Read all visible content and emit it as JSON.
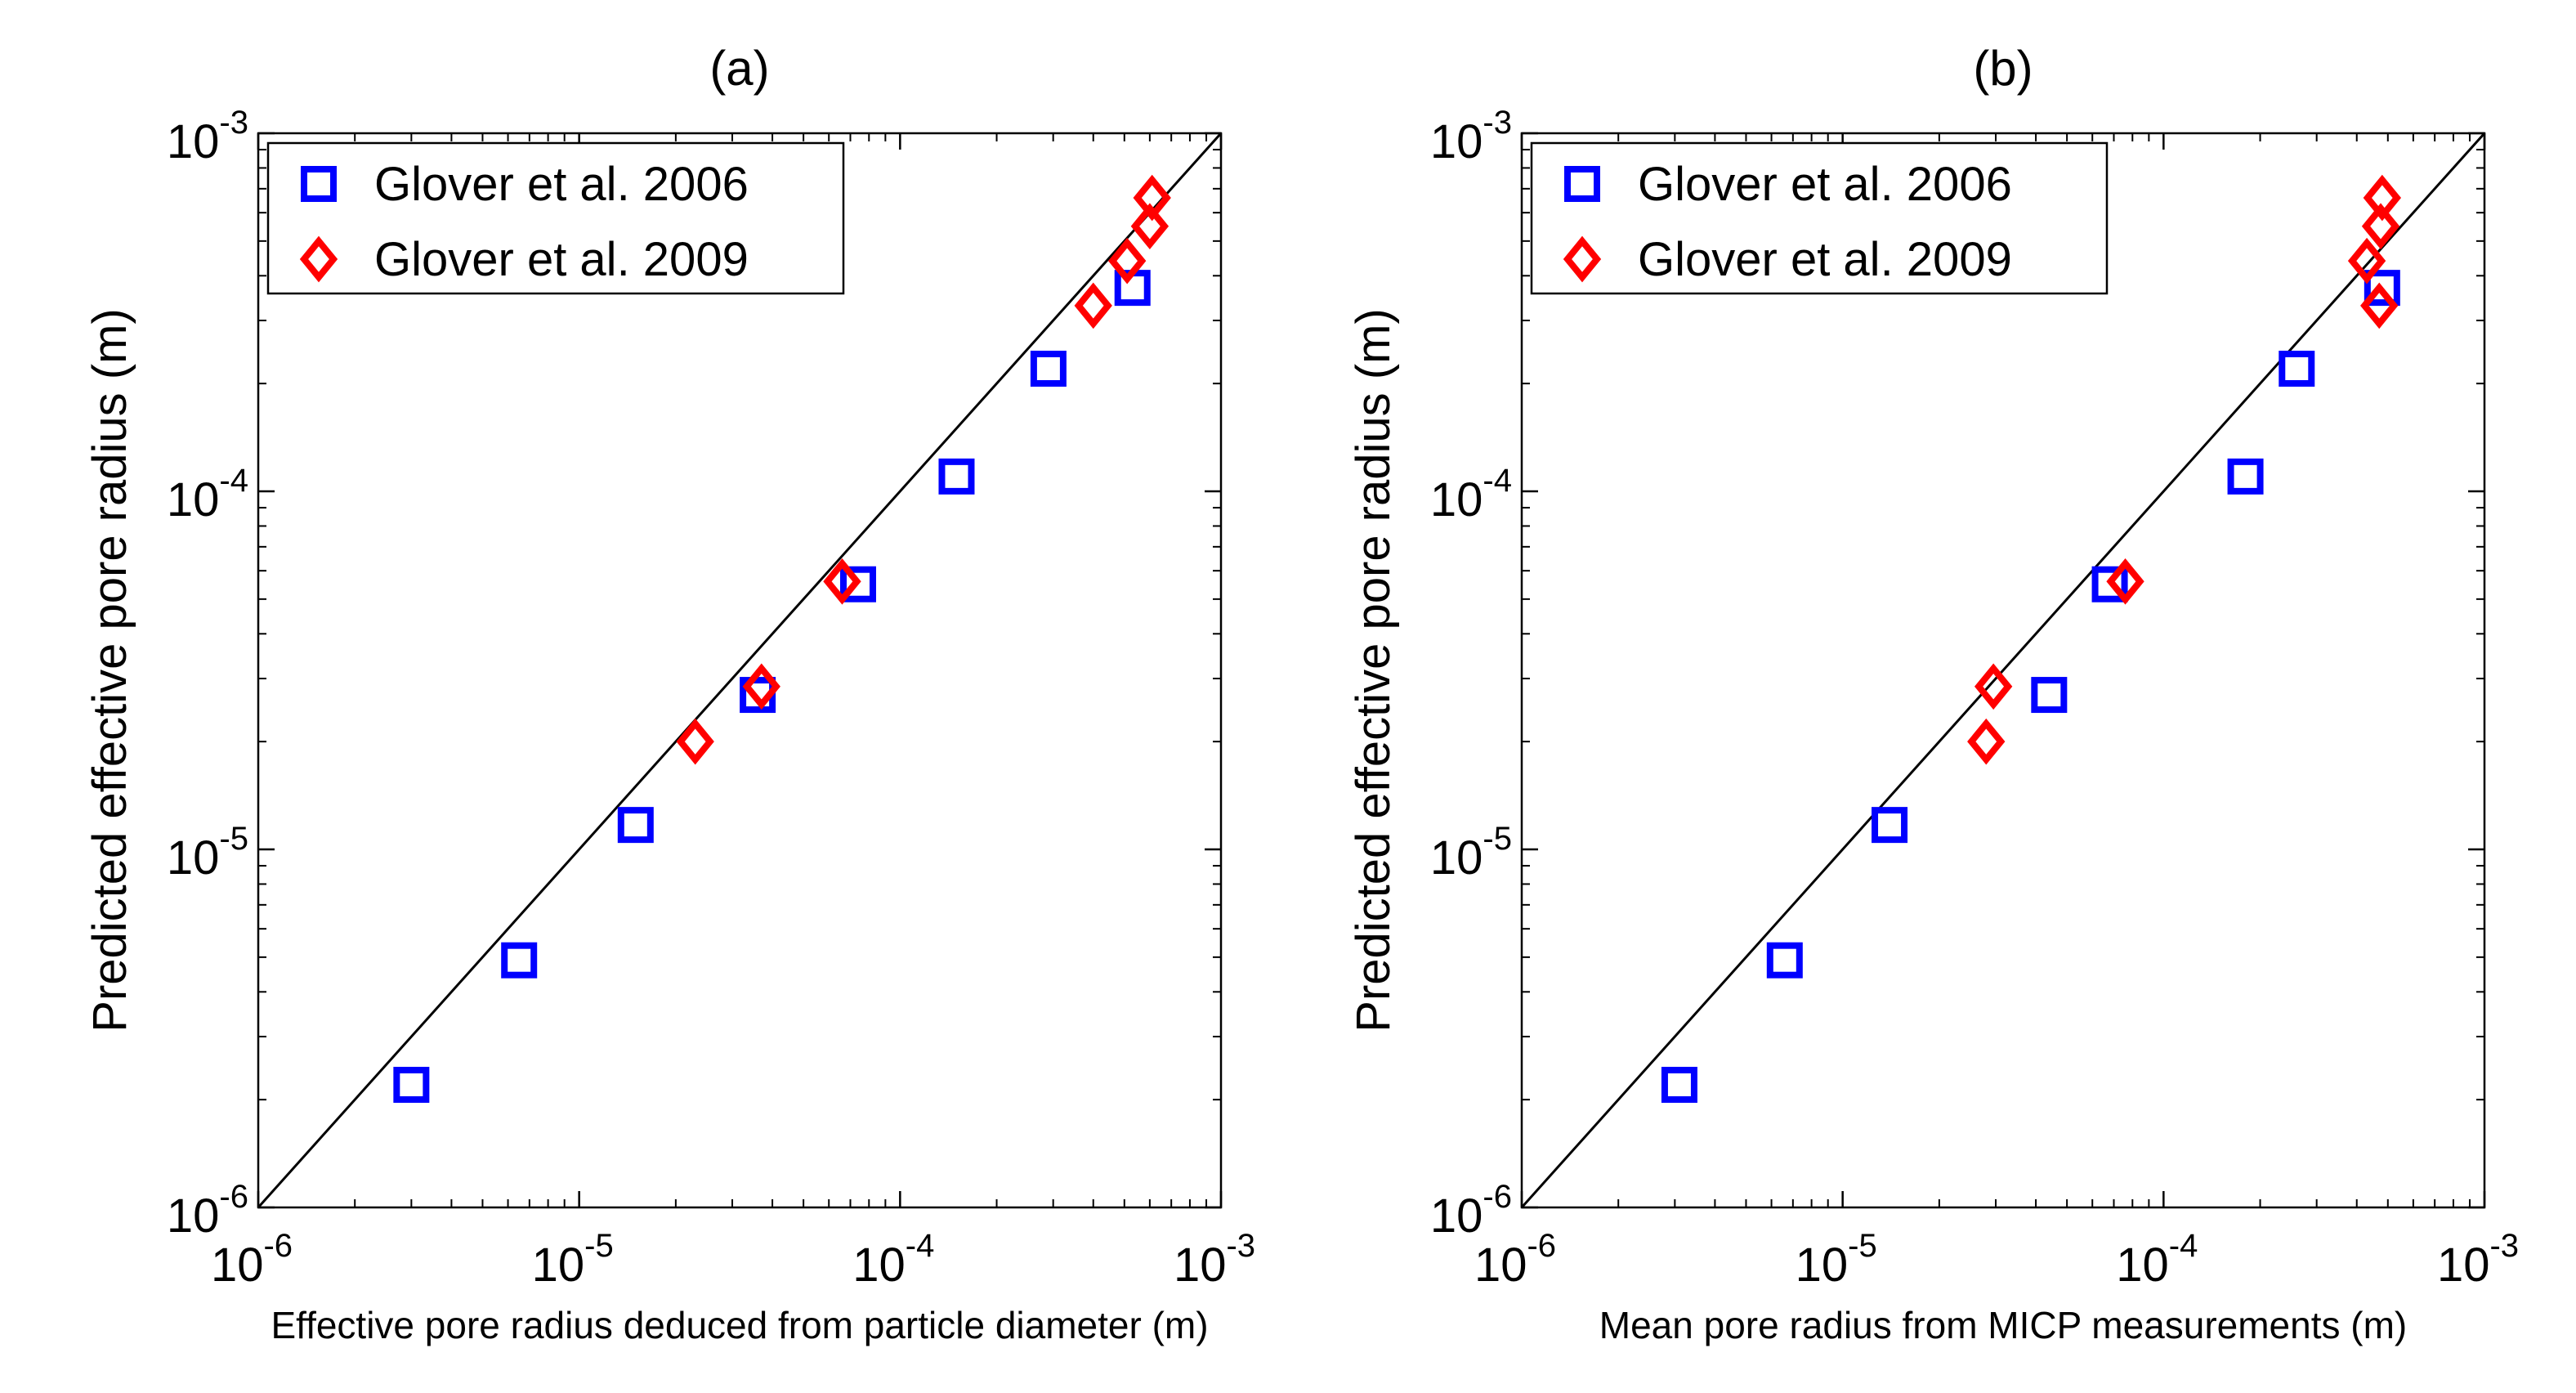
{
  "chart_data": [
    {
      "type": "scatter",
      "title": "(a)",
      "xlabel": "Effective pore radius deduced from particle diameter (m)",
      "ylabel": "Predicted effective pore radius (m)",
      "xscale": "log",
      "yscale": "log",
      "xlim": [
        1e-06,
        0.001
      ],
      "ylim": [
        1e-06,
        0.001
      ],
      "xticks": [
        {
          "base": "10",
          "exp": "-6",
          "value": 1e-06
        },
        {
          "base": "10",
          "exp": "-5",
          "value": 1e-05
        },
        {
          "base": "10",
          "exp": "-4",
          "value": 0.0001
        },
        {
          "base": "10",
          "exp": "-3",
          "value": 0.001
        }
      ],
      "yticks": [
        {
          "base": "10",
          "exp": "-6",
          "value": 1e-06
        },
        {
          "base": "10",
          "exp": "-5",
          "value": 1e-05
        },
        {
          "base": "10",
          "exp": "-4",
          "value": 0.0001
        },
        {
          "base": "10",
          "exp": "-3",
          "value": 0.001
        }
      ],
      "grid": false,
      "legend_position": "top-left",
      "reference_line": "y = x",
      "series": [
        {
          "name": "Glover et al. 2006",
          "marker": "square",
          "color": "#0000ff",
          "points": [
            [
              3e-06,
              2.2e-06
            ],
            [
              6.5e-06,
              4.9e-06
            ],
            [
              1.5e-05,
              1.17e-05
            ],
            [
              3.6e-05,
              2.7e-05
            ],
            [
              7.4e-05,
              5.5e-05
            ],
            [
              0.00015,
              0.00011
            ],
            [
              0.00029,
              0.00022
            ],
            [
              0.00053,
              0.00037
            ]
          ]
        },
        {
          "name": "Glover et al. 2009",
          "marker": "diamond",
          "color": "#ff0000",
          "points": [
            [
              2.3e-05,
              2e-05
            ],
            [
              3.7e-05,
              2.85e-05
            ],
            [
              6.6e-05,
              5.6e-05
            ],
            [
              0.0004,
              0.00033
            ],
            [
              0.00051,
              0.00044
            ],
            [
              0.0006,
              0.00055
            ],
            [
              0.00061,
              0.00066
            ]
          ]
        }
      ]
    },
    {
      "type": "scatter",
      "title": "(b)",
      "xlabel": "Mean pore radius from MICP measurements (m)",
      "ylabel": "Predicted effective pore radius (m)",
      "xscale": "log",
      "yscale": "log",
      "xlim": [
        1e-06,
        0.001
      ],
      "ylim": [
        1e-06,
        0.001
      ],
      "xticks": [
        {
          "base": "10",
          "exp": "-6",
          "value": 1e-06
        },
        {
          "base": "10",
          "exp": "-5",
          "value": 1e-05
        },
        {
          "base": "10",
          "exp": "-4",
          "value": 0.0001
        },
        {
          "base": "10",
          "exp": "-3",
          "value": 0.001
        }
      ],
      "yticks": [
        {
          "base": "10",
          "exp": "-6",
          "value": 1e-06
        },
        {
          "base": "10",
          "exp": "-5",
          "value": 1e-05
        },
        {
          "base": "10",
          "exp": "-4",
          "value": 0.0001
        },
        {
          "base": "10",
          "exp": "-3",
          "value": 0.001
        }
      ],
      "grid": false,
      "legend_position": "top-left",
      "reference_line": "y = x",
      "series": [
        {
          "name": "Glover et al. 2006",
          "marker": "square",
          "color": "#0000ff",
          "points": [
            [
              3.1e-06,
              2.2e-06
            ],
            [
              6.6e-06,
              4.9e-06
            ],
            [
              1.4e-05,
              1.17e-05
            ],
            [
              4.4e-05,
              2.7e-05
            ],
            [
              6.8e-05,
              5.5e-05
            ],
            [
              0.00018,
              0.00011
            ],
            [
              0.00026,
              0.00022
            ],
            [
              0.00048,
              0.00037
            ]
          ]
        },
        {
          "name": "Glover et al. 2009",
          "marker": "diamond",
          "color": "#ff0000",
          "points": [
            [
              2.8e-05,
              2e-05
            ],
            [
              2.95e-05,
              2.85e-05
            ],
            [
              7.6e-05,
              5.6e-05
            ],
            [
              0.00047,
              0.00033
            ],
            [
              0.00043,
              0.00044
            ],
            [
              0.000475,
              0.00055
            ],
            [
              0.00048,
              0.00066
            ]
          ]
        }
      ]
    }
  ]
}
